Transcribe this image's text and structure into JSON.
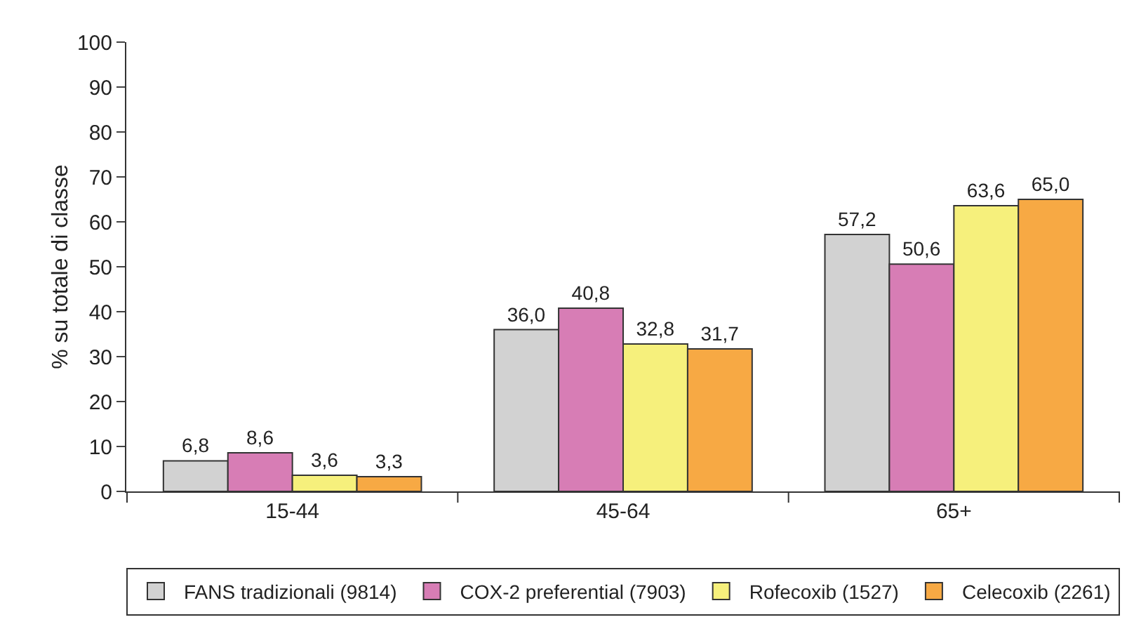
{
  "chart_data": {
    "type": "bar",
    "ylabel": "% su totale di classe",
    "categories": [
      "15-44",
      "45-64",
      "65+"
    ],
    "series": [
      {
        "name": "FANS tradizionali (9814)",
        "color": "#d2d2d2",
        "values": [
          6.8,
          36.0,
          57.2
        ],
        "value_labels": [
          "6,8",
          "36,0",
          "57,2"
        ]
      },
      {
        "name": "COX-2 preferential (7903)",
        "color": "#d77db5",
        "values": [
          8.6,
          40.8,
          50.6
        ],
        "value_labels": [
          "8,6",
          "40,8",
          "50,6"
        ]
      },
      {
        "name": "Rofecoxib (1527)",
        "color": "#f6f07c",
        "values": [
          3.6,
          32.8,
          63.6
        ],
        "value_labels": [
          "3,6",
          "32,8",
          "63,6"
        ]
      },
      {
        "name": "Celecoxib (2261)",
        "color": "#f7a944",
        "values": [
          3.3,
          31.7,
          65.0
        ],
        "value_labels": [
          "3,3",
          "31,7",
          "65,0"
        ]
      }
    ],
    "ylim": [
      0,
      100
    ],
    "yticks": [
      0,
      10,
      20,
      30,
      40,
      50,
      60,
      70,
      80,
      90,
      100
    ],
    "grid": false,
    "legend": "bottom"
  }
}
